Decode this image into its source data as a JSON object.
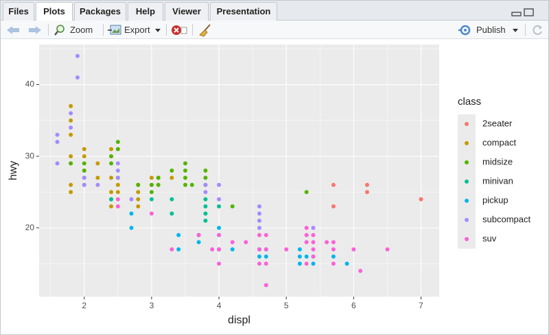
{
  "tabs": [
    "Files",
    "Plots",
    "Packages",
    "Help",
    "Viewer",
    "Presentation"
  ],
  "toolbar": {
    "zoom": "Zoom",
    "export": "Export",
    "publish": "Publish"
  },
  "chart_data": {
    "type": "scatter",
    "x_label": "displ",
    "y_label": "hwy",
    "legend_title": "class",
    "xlim": [
      1.33,
      7.27
    ],
    "ylim": [
      10.4,
      45.6
    ],
    "xticks": [
      2,
      3,
      4,
      5,
      6,
      7
    ],
    "yticks": [
      20,
      30,
      40
    ],
    "grid": true,
    "legend_position": "right",
    "series": [
      {
        "name": "2seater",
        "color": "#F8766D",
        "x": [
          5.7,
          5.7,
          6.2,
          6.2,
          7
        ],
        "values": [
          26,
          23,
          26,
          25,
          24
        ]
      },
      {
        "name": "compact",
        "color": "#C49A00",
        "x": [
          1.8,
          1.8,
          1.8,
          1.8,
          1.8,
          1.8,
          1.8,
          2,
          2,
          2,
          2,
          2.2,
          2.2,
          2.4,
          2.4,
          2.4,
          2.4,
          2.4,
          2.5,
          2.5,
          2.5,
          2.8,
          2.8,
          2.8,
          2.8,
          3,
          3,
          3.1,
          3.3
        ],
        "values": [
          29,
          26,
          25,
          30,
          33,
          35,
          37,
          31,
          30,
          28,
          26,
          27,
          29,
          31,
          30,
          27,
          25,
          23,
          27,
          26,
          25,
          26,
          25,
          24,
          23,
          26,
          27,
          27,
          27
        ]
      },
      {
        "name": "midsize",
        "color": "#53B400",
        "x": [
          1.8,
          2,
          2,
          2,
          2.4,
          2.4,
          2.4,
          2.5,
          2.5,
          2.5,
          2.8,
          3,
          3,
          3.1,
          3.1,
          3.3,
          3.5,
          3.5,
          3.5,
          3.5,
          3.6,
          3.8,
          3.8,
          3.8,
          4.2,
          5.3
        ],
        "values": [
          29,
          28,
          27,
          29,
          30,
          29,
          24,
          32,
          31,
          27,
          26,
          25,
          26,
          26,
          27,
          28,
          26,
          27,
          28,
          29,
          26,
          26,
          27,
          28,
          23,
          25
        ]
      },
      {
        "name": "minivan",
        "color": "#00C094",
        "x": [
          2.4,
          3,
          3.3,
          3.3,
          3.8,
          3.8,
          3.8,
          3.8,
          4
        ],
        "values": [
          24,
          24,
          24,
          22,
          23,
          22,
          21,
          24,
          23
        ]
      },
      {
        "name": "pickup",
        "color": "#00B6EB",
        "x": [
          2.7,
          2.7,
          3.4,
          3.4,
          3.7,
          3.7,
          4,
          4,
          4,
          4.2,
          4.6,
          4.6,
          4.7,
          4.7,
          5.2,
          5.2,
          5.2,
          5.3,
          5.4,
          5.4,
          5.7,
          5.9
        ],
        "values": [
          22,
          20,
          19,
          17,
          18,
          19,
          20,
          19,
          17,
          17,
          17,
          16,
          16,
          17,
          17,
          16,
          15,
          16,
          15,
          16,
          16,
          15
        ]
      },
      {
        "name": "subcompact",
        "color": "#A58AFF",
        "x": [
          1.6,
          1.6,
          1.6,
          1.8,
          1.8,
          1.9,
          1.9,
          2,
          2,
          2.2,
          2.5,
          2.5,
          2.5,
          2.7,
          3.8,
          3.8,
          4,
          4,
          4.6,
          4.6,
          4.6,
          4.6,
          5.4
        ],
        "values": [
          33,
          32,
          29,
          36,
          34,
          44,
          41,
          26,
          27,
          26,
          29,
          28,
          27,
          24,
          26,
          25,
          26,
          24,
          23,
          22,
          21,
          20,
          20
        ]
      },
      {
        "name": "suv",
        "color": "#FB61D7",
        "x": [
          2.5,
          2.5,
          3,
          3.3,
          3.7,
          3.9,
          4,
          4,
          4,
          4.2,
          4.4,
          4.6,
          4.6,
          4.6,
          4.7,
          4.7,
          4.7,
          4.7,
          5,
          5.3,
          5.3,
          5.3,
          5.3,
          5.4,
          5.4,
          5.4,
          5.6,
          5.7,
          5.7,
          5.7,
          6,
          6.1,
          6.5,
          5.4
        ],
        "values": [
          24,
          23,
          22,
          17,
          19,
          17,
          17,
          19,
          15,
          18,
          18,
          17,
          15,
          19,
          19,
          17,
          15,
          12,
          17,
          20,
          19,
          18,
          15,
          17,
          16,
          18,
          18,
          17,
          18,
          15,
          17,
          14,
          17,
          19
        ]
      }
    ]
  }
}
